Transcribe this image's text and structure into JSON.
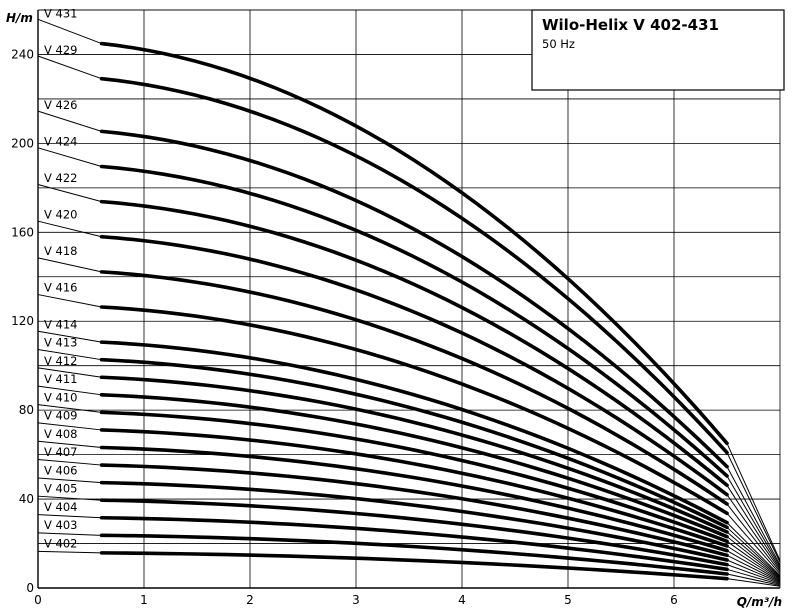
{
  "chart_data": {
    "type": "line",
    "title": "Wilo-Helix V 402-431",
    "subtitle": "50 Hz",
    "xlabel": "Q/m³/h",
    "ylabel": "H/m",
    "xlim": [
      0,
      7.0
    ],
    "ylim": [
      0,
      260
    ],
    "x_ticks": [
      0,
      1,
      2,
      3,
      4,
      5,
      6
    ],
    "y_ticks": [
      0,
      40,
      80,
      120,
      160,
      200,
      240
    ],
    "grid": true,
    "series": [
      {
        "name": "V 402",
        "shutoff": 16.5,
        "x": [
          0.6,
          6.5,
          7.0
        ],
        "y": [
          15.8,
          4.2,
          0.8
        ]
      },
      {
        "name": "V 403",
        "shutoff": 24.8,
        "x": [
          0.6,
          6.5,
          7.0
        ],
        "y": [
          23.7,
          6.3,
          1.2
        ]
      },
      {
        "name": "V 404",
        "shutoff": 33.0,
        "x": [
          0.6,
          6.5,
          7.0
        ],
        "y": [
          31.6,
          8.4,
          1.6
        ]
      },
      {
        "name": "V 405",
        "shutoff": 41.3,
        "x": [
          0.6,
          6.5,
          7.0
        ],
        "y": [
          39.5,
          10.5,
          2.0
        ]
      },
      {
        "name": "V 406",
        "shutoff": 49.5,
        "x": [
          0.6,
          6.5,
          7.0
        ],
        "y": [
          47.4,
          12.6,
          2.4
        ]
      },
      {
        "name": "V 407",
        "shutoff": 57.8,
        "x": [
          0.6,
          6.5,
          7.0
        ],
        "y": [
          55.3,
          14.7,
          2.8
        ]
      },
      {
        "name": "V 408",
        "shutoff": 66.0,
        "x": [
          0.6,
          6.5,
          7.0
        ],
        "y": [
          63.2,
          16.8,
          3.2
        ]
      },
      {
        "name": "V 409",
        "shutoff": 74.3,
        "x": [
          0.6,
          6.5,
          7.0
        ],
        "y": [
          71.1,
          18.9,
          3.6
        ]
      },
      {
        "name": "V 410",
        "shutoff": 82.5,
        "x": [
          0.6,
          6.5,
          7.0
        ],
        "y": [
          79.0,
          21.0,
          4.0
        ]
      },
      {
        "name": "V 411",
        "shutoff": 90.8,
        "x": [
          0.6,
          6.5,
          7.0
        ],
        "y": [
          86.9,
          23.1,
          4.4
        ]
      },
      {
        "name": "V 412",
        "shutoff": 99.0,
        "x": [
          0.6,
          6.5,
          7.0
        ],
        "y": [
          94.8,
          25.2,
          4.8
        ]
      },
      {
        "name": "V 413",
        "shutoff": 107.3,
        "x": [
          0.6,
          6.5,
          7.0
        ],
        "y": [
          102.7,
          27.3,
          5.2
        ]
      },
      {
        "name": "V 414",
        "shutoff": 115.5,
        "x": [
          0.6,
          6.5,
          7.0
        ],
        "y": [
          110.6,
          29.4,
          5.6
        ]
      },
      {
        "name": "V 416",
        "shutoff": 132.0,
        "x": [
          0.6,
          6.5,
          7.0
        ],
        "y": [
          126.4,
          33.6,
          6.4
        ]
      },
      {
        "name": "V 418",
        "shutoff": 148.5,
        "x": [
          0.6,
          6.5,
          7.0
        ],
        "y": [
          142.2,
          37.8,
          7.2
        ]
      },
      {
        "name": "V 420",
        "shutoff": 165.0,
        "x": [
          0.6,
          6.5,
          7.0
        ],
        "y": [
          158.0,
          42.0,
          8.0
        ]
      },
      {
        "name": "V 422",
        "shutoff": 181.5,
        "x": [
          0.6,
          6.5,
          7.0
        ],
        "y": [
          173.8,
          46.2,
          8.8
        ]
      },
      {
        "name": "V 424",
        "shutoff": 198.0,
        "x": [
          0.6,
          6.5,
          7.0
        ],
        "y": [
          189.6,
          50.4,
          9.6
        ]
      },
      {
        "name": "V 426",
        "shutoff": 214.5,
        "x": [
          0.6,
          6.5,
          7.0
        ],
        "y": [
          205.4,
          54.6,
          10.4
        ]
      },
      {
        "name": "V 429",
        "shutoff": 239.3,
        "x": [
          0.6,
          6.5,
          7.0
        ],
        "y": [
          229.1,
          60.9,
          11.6
        ]
      },
      {
        "name": "V 431",
        "shutoff": 255.8,
        "x": [
          0.6,
          6.5,
          7.0
        ],
        "y": [
          244.9,
          65.1,
          12.4
        ]
      }
    ]
  }
}
